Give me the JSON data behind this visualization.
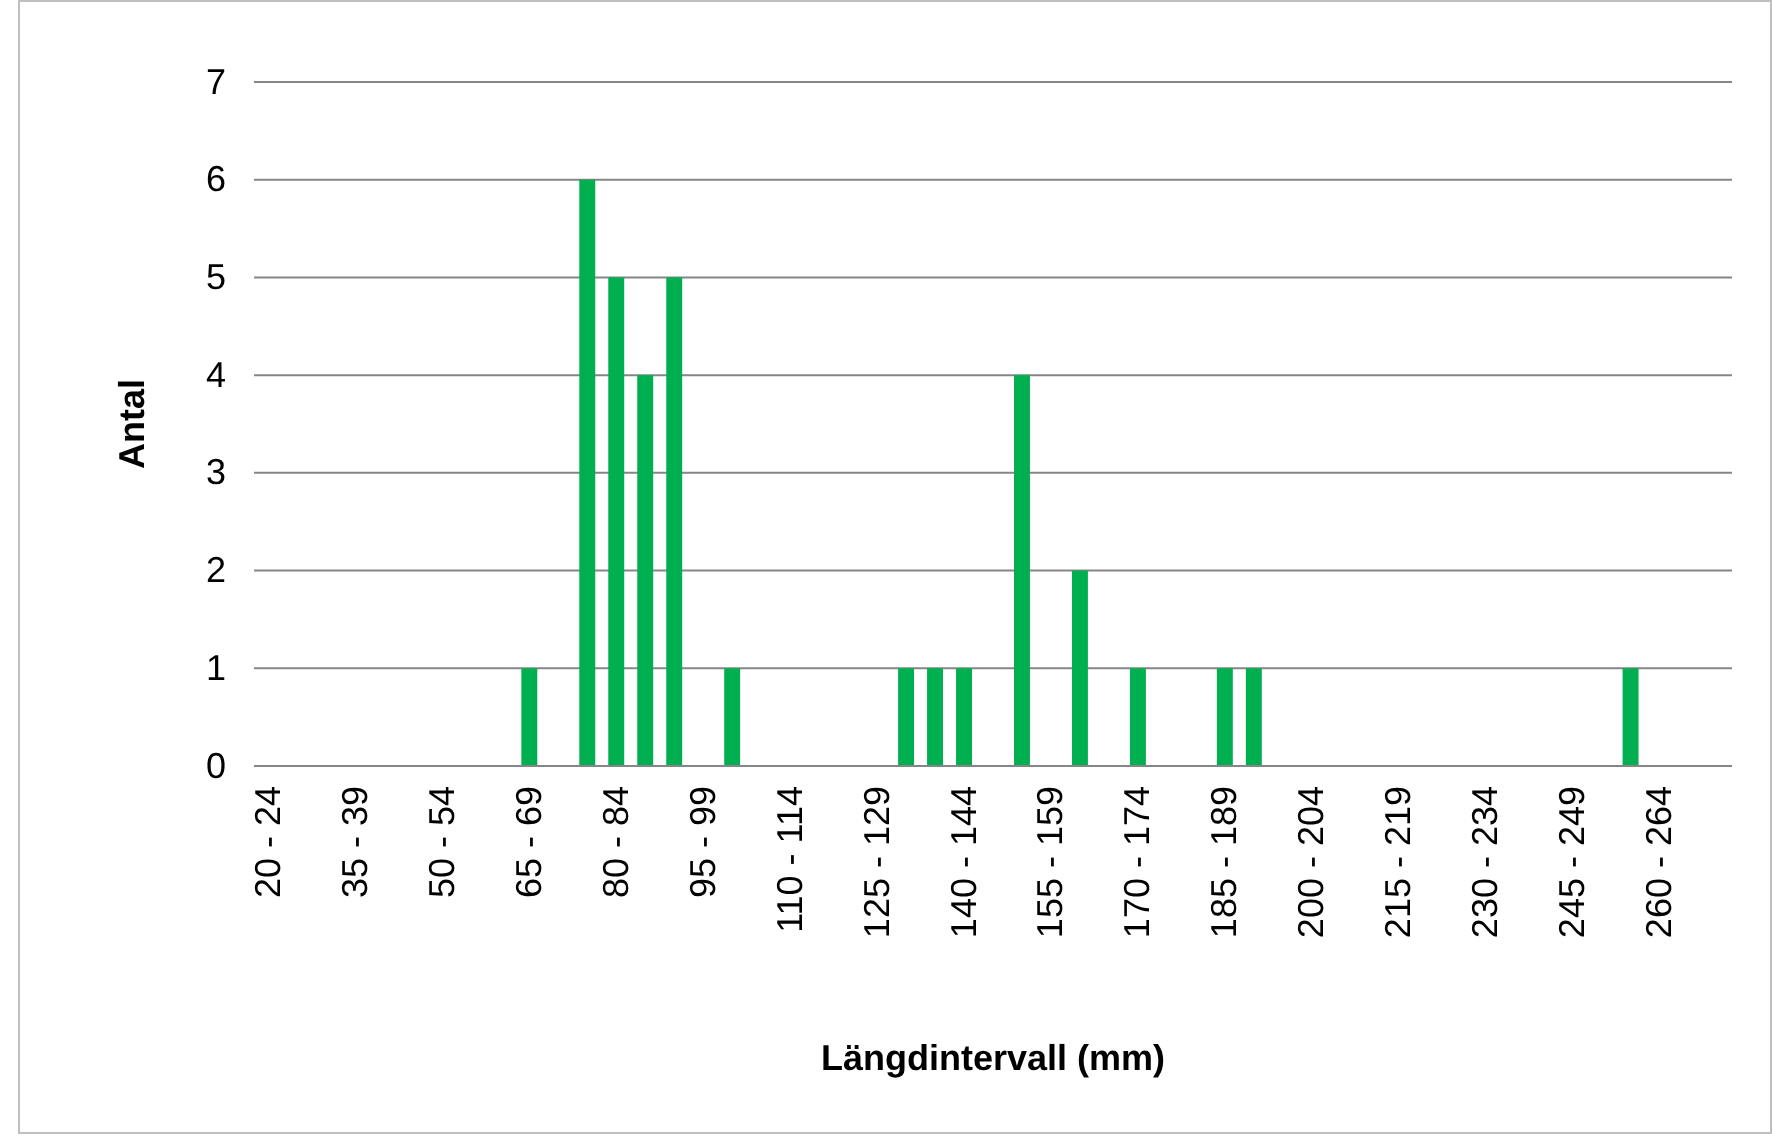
{
  "chart_data": {
    "type": "bar",
    "xlabel": "Längdintervall (mm)",
    "ylabel": "Antal",
    "categories": [
      "20 - 24",
      null,
      null,
      "35 - 39",
      null,
      null,
      "50 - 54",
      null,
      null,
      "65 - 69",
      null,
      null,
      "80 - 84",
      null,
      null,
      "95 - 99",
      null,
      null,
      "110 - 114",
      null,
      null,
      "125 - 129",
      null,
      null,
      "140 - 144",
      null,
      null,
      "155 - 159",
      null,
      null,
      "170 - 174",
      null,
      null,
      "185 - 189",
      null,
      null,
      "200 - 204",
      null,
      null,
      "215 - 219",
      null,
      null,
      "230 - 234",
      null,
      null,
      "245 - 249",
      null,
      null,
      "260 - 264",
      null,
      null
    ],
    "values": [
      0,
      0,
      0,
      0,
      0,
      0,
      0,
      0,
      0,
      1,
      0,
      6,
      5,
      4,
      5,
      0,
      1,
      0,
      0,
      0,
      0,
      0,
      1,
      1,
      1,
      0,
      4,
      0,
      2,
      0,
      1,
      0,
      0,
      1,
      1,
      0,
      0,
      0,
      0,
      0,
      0,
      0,
      0,
      0,
      0,
      0,
      0,
      1,
      0,
      0,
      0
    ],
    "color": "#00b050",
    "ylim": [
      0,
      7
    ],
    "yticks": [
      0,
      1,
      2,
      3,
      4,
      5,
      6,
      7
    ],
    "grid": "y"
  }
}
